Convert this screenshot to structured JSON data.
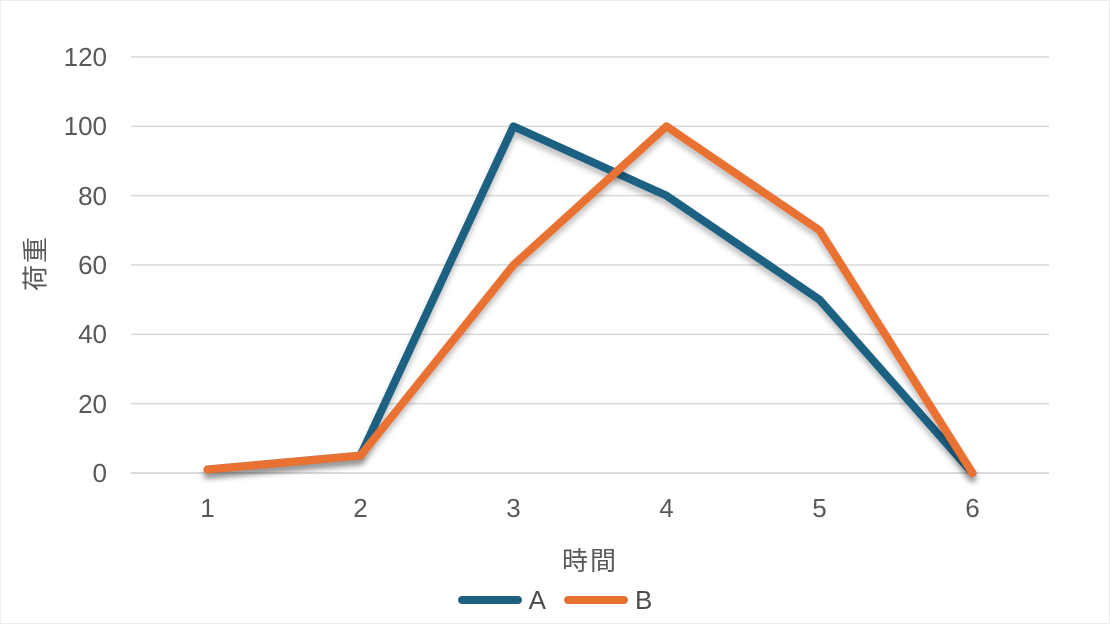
{
  "chart_data": {
    "type": "line",
    "title": "",
    "categories": [
      "1",
      "2",
      "3",
      "4",
      "5",
      "6"
    ],
    "series": [
      {
        "name": "A",
        "color": "#1E6082",
        "values": [
          1,
          5,
          100,
          80,
          50,
          0
        ]
      },
      {
        "name": "B",
        "color": "#E97132",
        "values": [
          1,
          5,
          60,
          100,
          70,
          0
        ]
      }
    ],
    "xlabel": "時間",
    "ylabel": "荷重",
    "ylim": [
      0,
      120
    ],
    "yticks": [
      0,
      20,
      40,
      60,
      80,
      100,
      120
    ],
    "grid": true,
    "legend_position": "bottom",
    "colors": {
      "gridline": "#D9D9D9",
      "axis_line": "#CFCFCF",
      "tick_text": "#595959",
      "legend_text": "#4D4D4D",
      "background": "#FFFFFF"
    }
  }
}
